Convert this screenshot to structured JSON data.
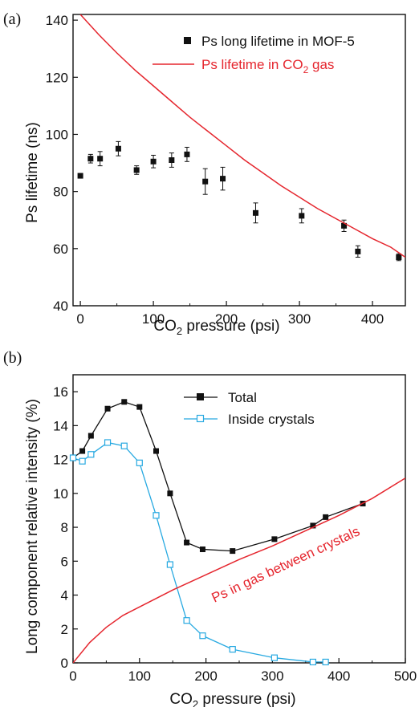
{
  "figure": {
    "panel_a_label": "(a)",
    "panel_b_label": "(b)"
  },
  "colors": {
    "black_series": "#111111",
    "red_curve": "#e5262e",
    "blue_series": "#27a9e1"
  },
  "chart_data": [
    {
      "type": "scatter",
      "panel": "(a)",
      "xlabel": {
        "text": "CO",
        "sub": "2",
        "rest": " pressure (psi)"
      },
      "ylabel": "Ps lifetime (ns)",
      "xlim": [
        -10,
        445
      ],
      "ylim": [
        40,
        142
      ],
      "xticks": [
        0,
        100,
        200,
        300,
        400
      ],
      "yticks": [
        40,
        60,
        80,
        100,
        120,
        140
      ],
      "grid": false,
      "legend_position": "top-right",
      "series": [
        {
          "name": "Ps long lifetime in MOF-5",
          "marker": "filled-square",
          "color": "#111111",
          "x": [
            0,
            14,
            27,
            52,
            77,
            100,
            125,
            146,
            171,
            195,
            240,
            303,
            361,
            380,
            436
          ],
          "y": [
            85.5,
            91.5,
            91.5,
            95,
            87.5,
            90.5,
            91,
            93,
            83.5,
            84.5,
            72.5,
            71.5,
            68,
            59,
            57
          ],
          "err": [
            0.8,
            1.5,
            2.5,
            2.5,
            1.5,
            2.2,
            2.5,
            2.5,
            4.5,
            4.0,
            3.5,
            2.5,
            2.0,
            2.0,
            1.2
          ]
        },
        {
          "name": "Ps lifetime in CO",
          "name_sub": "2",
          "name_rest": " gas",
          "type": "line",
          "color": "#e5262e",
          "x": [
            0,
            25,
            50,
            75,
            100,
            125,
            150,
            175,
            200,
            225,
            250,
            275,
            300,
            325,
            350,
            375,
            400,
            425,
            445
          ],
          "y": [
            142,
            135,
            128.5,
            122.5,
            117,
            111.5,
            106,
            101,
            96,
            91,
            86.5,
            82,
            78,
            74,
            70.5,
            67,
            63.5,
            60.5,
            57
          ]
        }
      ]
    },
    {
      "type": "line",
      "panel": "(b)",
      "xlabel": {
        "text": "CO",
        "sub": "2",
        "rest": " pressure (psi)"
      },
      "ylabel": "Long component relative intensity (%)",
      "xlim": [
        0,
        500
      ],
      "ylim": [
        0,
        17
      ],
      "xticks": [
        0,
        100,
        200,
        300,
        400,
        500
      ],
      "yticks": [
        0,
        2,
        4,
        6,
        8,
        10,
        12,
        14,
        16
      ],
      "grid": false,
      "legend_position": "top-right",
      "annotation": "Ps in gas between crystals",
      "series": [
        {
          "name": "Total",
          "marker": "filled-square",
          "color": "#111111",
          "x": [
            0,
            14,
            27,
            52,
            77,
            100,
            125,
            146,
            171,
            195,
            240,
            303,
            361,
            380,
            436
          ],
          "y": [
            12.1,
            12.5,
            13.4,
            15.0,
            15.4,
            15.1,
            12.5,
            10.0,
            7.1,
            6.7,
            6.6,
            7.3,
            8.1,
            8.6,
            9.4
          ]
        },
        {
          "name": "Inside crystals",
          "marker": "open-square",
          "color": "#27a9e1",
          "x": [
            0,
            14,
            27,
            52,
            77,
            100,
            125,
            146,
            171,
            195,
            240,
            303,
            361,
            380
          ],
          "y": [
            12.1,
            11.9,
            12.3,
            13.0,
            12.8,
            11.8,
            8.7,
            5.8,
            2.5,
            1.6,
            0.8,
            0.3,
            0.05,
            0.05
          ]
        },
        {
          "name": "",
          "type": "line",
          "color": "#e5262e",
          "x": [
            0,
            25,
            50,
            75,
            100,
            150,
            200,
            250,
            300,
            350,
            400,
            450,
            500
          ],
          "y": [
            0,
            1.2,
            2.1,
            2.8,
            3.3,
            4.3,
            5.2,
            6.1,
            6.9,
            7.8,
            8.7,
            9.7,
            10.9
          ]
        }
      ]
    }
  ]
}
